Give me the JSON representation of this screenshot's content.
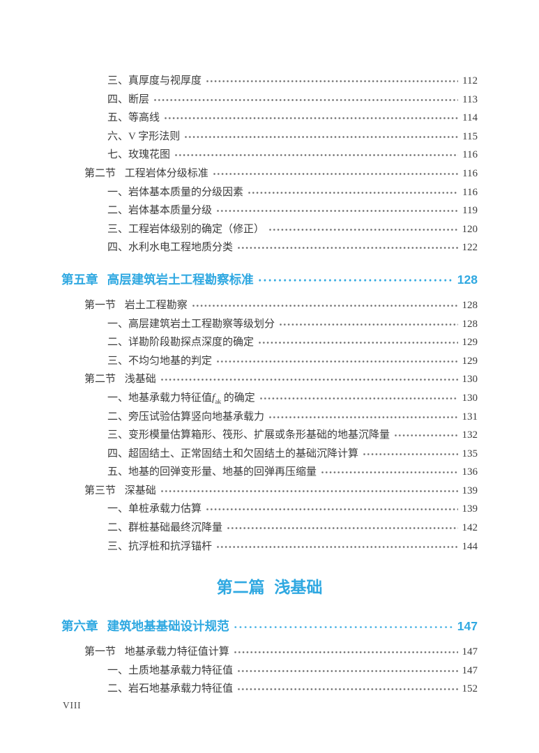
{
  "meta": {
    "footer_page_label": "VIII"
  },
  "colors": {
    "accent": "#2fa8e1",
    "text": "#3b3b3b",
    "dot_leader": "#6e6e6e"
  },
  "toc": [
    {
      "level": "sub",
      "label": "三、真厚度与视厚度",
      "page": "112"
    },
    {
      "level": "sub",
      "label": "四、断层",
      "page": "113"
    },
    {
      "level": "sub",
      "label": "五、等高线",
      "page": "114"
    },
    {
      "level": "sub",
      "label": "六、V 字形法则",
      "page": "115"
    },
    {
      "level": "sub",
      "label": "七、玫瑰花图",
      "page": "116"
    },
    {
      "level": "section",
      "prefix": "第二节",
      "label": "工程岩体分级标准",
      "page": "116"
    },
    {
      "level": "sub",
      "label": "一、岩体基本质量的分级因素",
      "page": "116"
    },
    {
      "level": "sub",
      "label": "二、岩体基本质量分级",
      "page": "119"
    },
    {
      "level": "sub",
      "label": "三、工程岩体级别的确定（修正）",
      "page": "120"
    },
    {
      "level": "sub",
      "label": "四、水利水电工程地质分类",
      "page": "122"
    },
    {
      "level": "chapter",
      "prefix": "第五章",
      "label": "高层建筑岩土工程勘察标准",
      "page": "128"
    },
    {
      "level": "section",
      "prefix": "第一节",
      "label": "岩土工程勘察",
      "page": "128"
    },
    {
      "level": "sub",
      "label": "一、高层建筑岩土工程勘察等级划分",
      "page": "128"
    },
    {
      "level": "sub",
      "label": "二、详勘阶段勘探点深度的确定",
      "page": "129"
    },
    {
      "level": "sub",
      "label": "三、不均匀地基的判定",
      "page": "129"
    },
    {
      "level": "section",
      "prefix": "第二节",
      "label": "浅基础",
      "page": "130"
    },
    {
      "level": "sub",
      "parts": [
        {
          "text": "一、地基承载力特征值"
        },
        {
          "text": "f",
          "style": "italic"
        },
        {
          "text": "ak",
          "style": "sub"
        },
        {
          "text": " 的确定"
        }
      ],
      "page": "130"
    },
    {
      "level": "sub",
      "label": "二、旁压试验估算竖向地基承载力",
      "page": "131"
    },
    {
      "level": "sub",
      "label": "三、变形模量估算箱形、筏形、扩展或条形基础的地基沉降量",
      "page": "132"
    },
    {
      "level": "sub",
      "label": "四、超固结土、正常固结土和欠固结土的基础沉降计算",
      "page": "135"
    },
    {
      "level": "sub",
      "label": "五、地基的回弹变形量、地基的回弹再压缩量",
      "page": "136"
    },
    {
      "level": "section",
      "prefix": "第三节",
      "label": "深基础",
      "page": "139"
    },
    {
      "level": "sub",
      "label": "一、单桩承载力估算",
      "page": "139"
    },
    {
      "level": "sub",
      "label": "二、群桩基础最终沉降量",
      "page": "142"
    },
    {
      "level": "sub",
      "label": "三、抗浮桩和抗浮锚杆",
      "page": "144"
    },
    {
      "level": "part",
      "prefix": "第二篇",
      "label": "浅基础"
    },
    {
      "level": "chapter",
      "prefix": "第六章",
      "label": "建筑地基基础设计规范",
      "page": "147"
    },
    {
      "level": "section",
      "prefix": "第一节",
      "label": "地基承载力特征值计算",
      "page": "147"
    },
    {
      "level": "sub",
      "label": "一、土质地基承载力特征值",
      "page": "147"
    },
    {
      "level": "sub",
      "label": "二、岩石地基承载力特征值",
      "page": "152"
    }
  ]
}
